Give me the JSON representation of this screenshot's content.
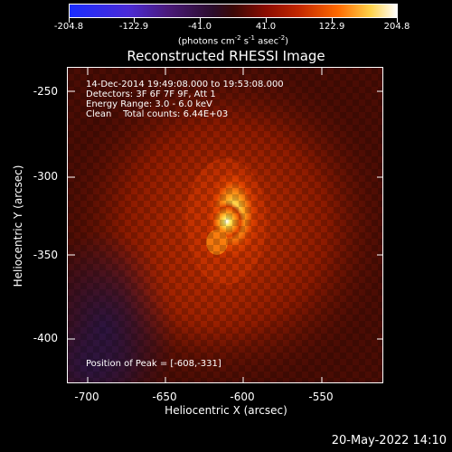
{
  "colorbar": {
    "ticks": [
      "-204.8",
      "-122.9",
      "-41.0",
      "41.0",
      "122.9",
      "204.8"
    ],
    "units_prefix": "(photons cm",
    "units_exp1": "-2",
    "units_mid1": " s",
    "units_exp2": "-1",
    "units_mid2": " asec",
    "units_exp3": "-2",
    "units_suffix": ")",
    "colors": [
      "#1a2cff",
      "#4a1a7a",
      "#3a0806",
      "#c22700",
      "#ffd34a",
      "#ffffff"
    ]
  },
  "title": "Reconstructed RHESSI Image",
  "info": {
    "line1": "14-Dec-2014 19:49:08.000 to 19:53:08.000",
    "line2": "Detectors: 3F 6F 7F 9F, Att 1",
    "line3": "Energy Range: 3.0 - 6.0 keV",
    "line4": "Clean    Total counts: 6.44E+03",
    "peak": "Position of Peak = [-608,-331]"
  },
  "axes": {
    "ylabel": "Heliocentric Y (arcsec)",
    "xlabel": "Heliocentric X (arcsec)",
    "yticks": [
      "-250",
      "-300",
      "-350",
      "-400"
    ],
    "xticks": [
      "-700",
      "-650",
      "-600",
      "-550"
    ],
    "yticks_values": [
      -250,
      -300,
      -350,
      -400
    ],
    "xticks_values": [
      -700,
      -650,
      -600,
      -550
    ]
  },
  "timestamp": "20-May-2022 14:10"
}
